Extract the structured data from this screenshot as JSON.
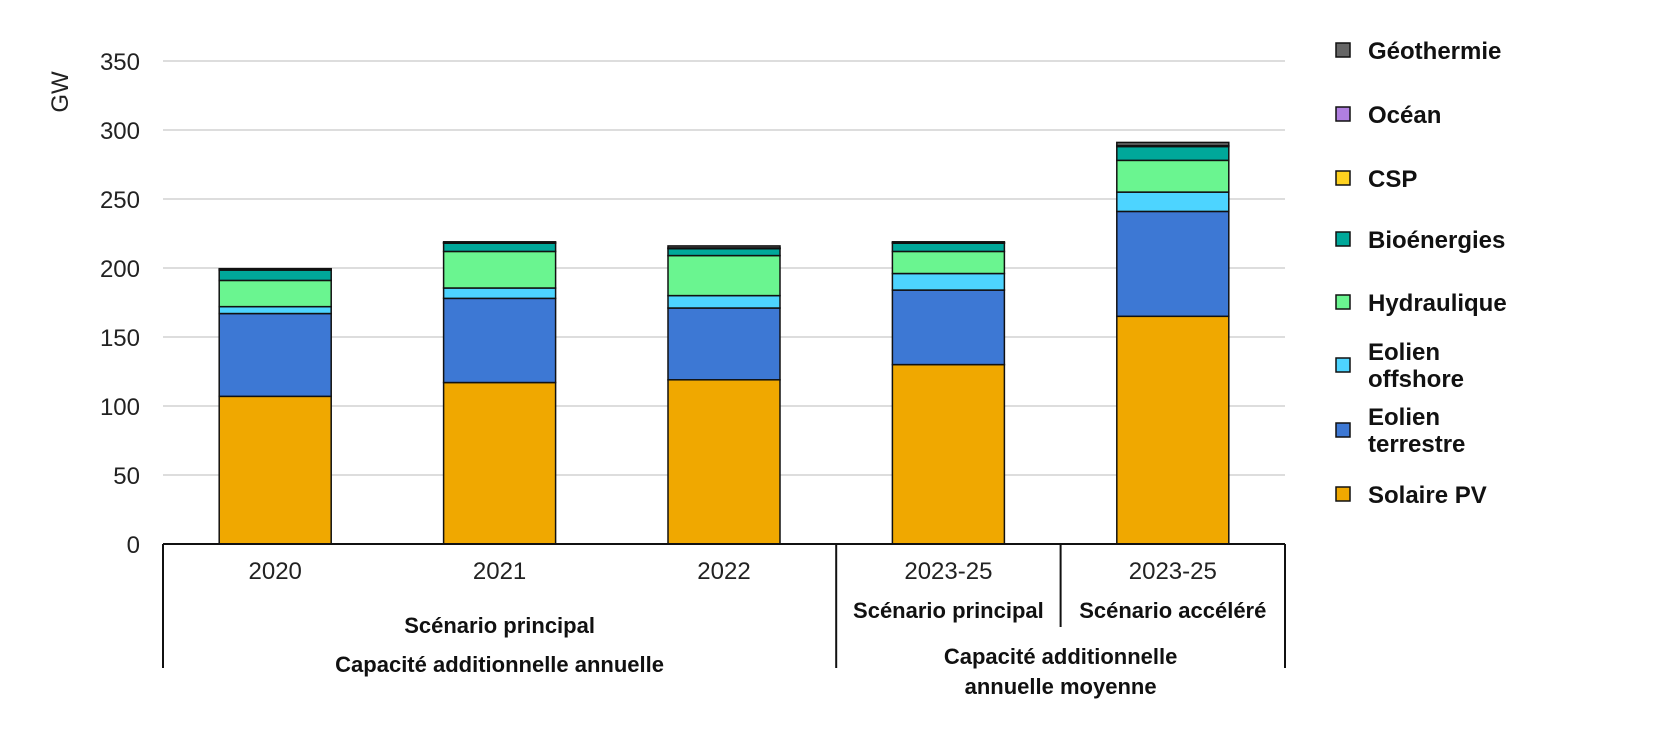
{
  "chart_data": {
    "type": "bar",
    "stacked": true,
    "ylabel": "GW",
    "ylim": [
      0,
      350
    ],
    "yticks": [
      0,
      50,
      100,
      150,
      200,
      250,
      300,
      350
    ],
    "grid": true,
    "legend_position": "right",
    "categories": [
      "2020",
      "2021",
      "2022",
      "2023-25",
      "2023-25"
    ],
    "subcategories": [
      "",
      "",
      "",
      "Scénario principal",
      "Scénario accéléré"
    ],
    "groups": [
      {
        "lines": [
          "Scénario principal",
          "Capacité additionnelle annuelle"
        ]
      },
      {
        "lines": [
          "Capacité additionnelle",
          "annuelle moyenne"
        ]
      }
    ],
    "series": [
      {
        "name": "Solaire PV",
        "color": "#f0a800",
        "values": [
          107,
          117,
          119,
          130,
          165
        ]
      },
      {
        "name": "Eolien terrestre",
        "color": "#3d78d4",
        "values": [
          60,
          61,
          52,
          54,
          76
        ]
      },
      {
        "name": "Eolien offshore",
        "color": "#4dd4ff",
        "values": [
          5,
          7.5,
          9,
          12,
          14
        ]
      },
      {
        "name": "Hydraulique",
        "color": "#6af590",
        "values": [
          19,
          26.5,
          29,
          16,
          23
        ]
      },
      {
        "name": "Bioénergies",
        "color": "#00a89a",
        "values": [
          7.5,
          6,
          5,
          6,
          10
        ]
      },
      {
        "name": "CSP",
        "color": "#ffd21f",
        "values": [
          0.3,
          0.3,
          0.5,
          0.3,
          0.5
        ]
      },
      {
        "name": "Océan",
        "color": "#b07fe0",
        "values": [
          0,
          0,
          0,
          0,
          0.2
        ]
      },
      {
        "name": "Géothermie",
        "color": "#666666",
        "values": [
          0.7,
          0.7,
          1.5,
          0.7,
          2.3
        ]
      }
    ],
    "legend_order": [
      "Géothermie",
      "Océan",
      "CSP",
      "Bioénergies",
      "Hydraulique",
      "Eolien offshore",
      "Eolien terrestre",
      "Solaire PV"
    ]
  }
}
